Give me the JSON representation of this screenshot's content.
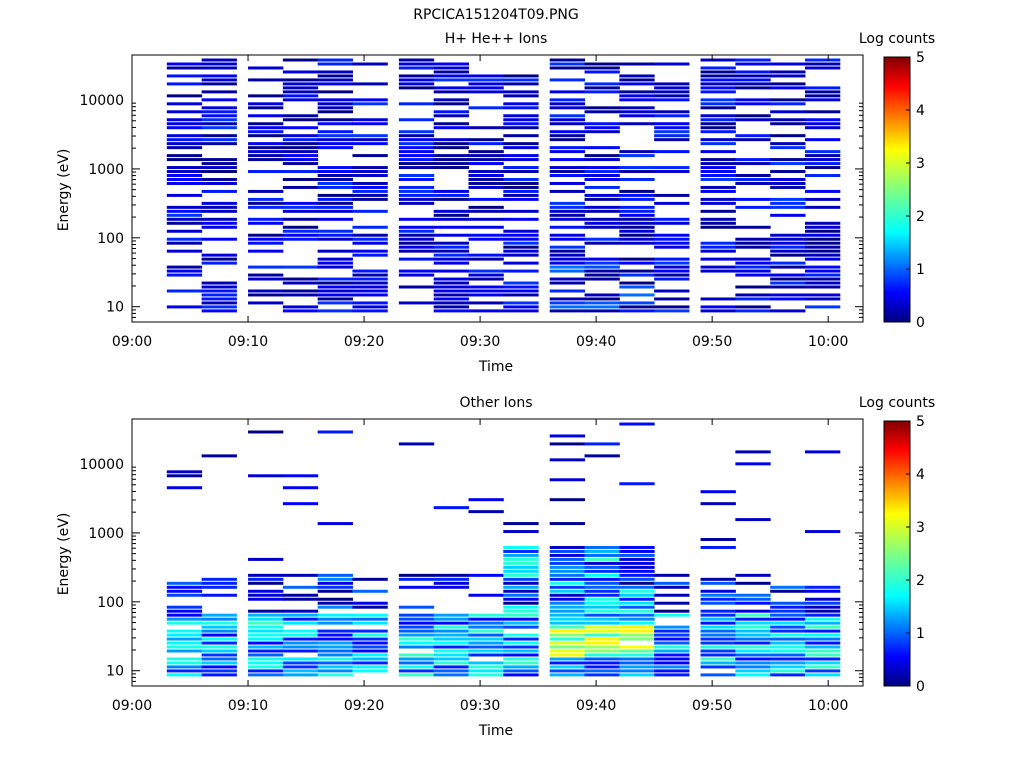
{
  "figure_title": "RPCICA151204T09.PNG",
  "chart_data": [
    {
      "type": "heatmap",
      "title": "H+ He++ Ions",
      "xlabel": "Time",
      "ylabel": "Energy (eV)",
      "yscale": "log",
      "ylim": [
        6,
        45000
      ],
      "xlim": [
        "09:00",
        "10:03"
      ],
      "xticks": [
        "09:00",
        "09:10",
        "09:20",
        "09:30",
        "09:40",
        "09:50",
        "10:00"
      ],
      "yticks": [
        "10",
        "100",
        "1000",
        "10000"
      ],
      "colorbar": {
        "label": "Log counts",
        "ticks": [
          "0",
          "1",
          "2",
          "3",
          "4",
          "5"
        ],
        "range": [
          0,
          5
        ]
      },
      "time_bins": [
        "09:03",
        "09:06",
        "09:10",
        "09:13",
        "09:16",
        "09:19",
        "09:23",
        "09:26",
        "09:29",
        "09:32",
        "09:36",
        "09:39",
        "09:42",
        "09:45",
        "09:49",
        "09:52",
        "09:55",
        "09:58"
      ],
      "description_of_values": "Sparse low-level counts (log counts ~0-1) across 8 eV - 40 keV, with a few ~1-1.5 cells near 30 eV around 09:39",
      "profile": {
        "density": 0.62,
        "max_log_counts": 1.3
      }
    },
    {
      "type": "heatmap",
      "title": "Other Ions",
      "xlabel": "Time",
      "ylabel": "Energy (eV)",
      "yscale": "log",
      "ylim": [
        6,
        45000
      ],
      "xlim": [
        "09:00",
        "10:03"
      ],
      "xticks": [
        "09:00",
        "09:10",
        "09:20",
        "09:30",
        "09:40",
        "09:50",
        "10:00"
      ],
      "yticks": [
        "10",
        "100",
        "1000",
        "10000"
      ],
      "colorbar": {
        "label": "Log counts",
        "ticks": [
          "0",
          "1",
          "2",
          "3",
          "4",
          "5"
        ],
        "range": [
          0,
          5
        ]
      },
      "time_bins": [
        "09:03",
        "09:06",
        "09:10",
        "09:13",
        "09:16",
        "09:19",
        "09:23",
        "09:26",
        "09:29",
        "09:32",
        "09:36",
        "09:39",
        "09:42",
        "09:45",
        "09:49",
        "09:52",
        "09:55",
        "09:58"
      ],
      "description_of_values": "Low-energy population 10-60 eV with log counts 1-2.8, peaking ~3 around 25-35 eV at 09:39; sparse counts at higher energies",
      "profile": {
        "density": 0.2,
        "max_log_counts": 3.2
      }
    }
  ]
}
